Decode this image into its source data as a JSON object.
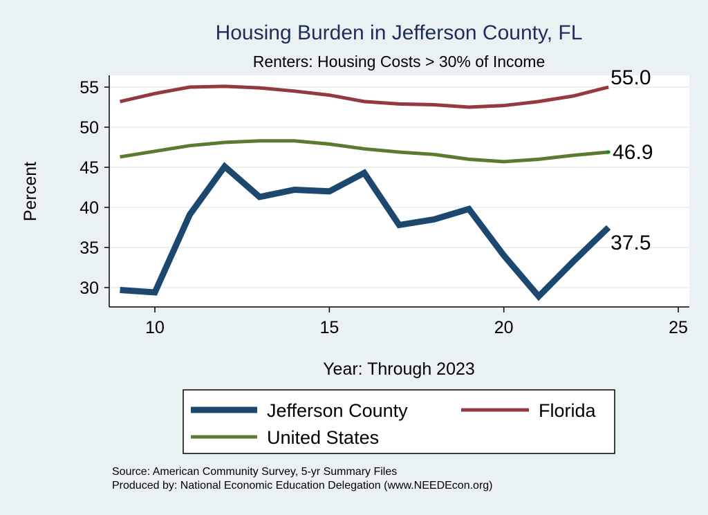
{
  "chart_data": {
    "type": "line",
    "title": "Housing Burden in Jefferson County, FL",
    "subtitle": "Renters: Housing Costs > 30% of Income",
    "xlabel": "Year: Through 2023",
    "ylabel": "Percent",
    "xlim": [
      9,
      25
    ],
    "ylim": [
      28.5,
      56
    ],
    "xticks": [
      10,
      15,
      20,
      25
    ],
    "yticks": [
      30,
      35,
      40,
      45,
      50,
      55
    ],
    "grid": "horizontal",
    "legend_position": "bottom",
    "x": [
      9,
      10,
      11,
      12,
      13,
      14,
      15,
      16,
      17,
      18,
      19,
      20,
      21,
      22,
      23
    ],
    "series": [
      {
        "name": "Jefferson County",
        "color": "#1c4870",
        "values": [
          29.7,
          29.4,
          39.1,
          45.1,
          41.3,
          42.2,
          42.0,
          44.3,
          37.8,
          38.5,
          39.8,
          34.0,
          28.9,
          33.3,
          37.5
        ],
        "end_label": "37.5"
      },
      {
        "name": "Florida",
        "color": "#933a40",
        "values": [
          53.2,
          54.2,
          55.0,
          55.1,
          54.9,
          54.5,
          54.0,
          53.2,
          52.9,
          52.8,
          52.5,
          52.7,
          53.2,
          53.9,
          55.0
        ],
        "end_label": "55.0"
      },
      {
        "name": "United States",
        "color": "#5a7a32",
        "values": [
          46.3,
          47.0,
          47.7,
          48.1,
          48.3,
          48.3,
          47.9,
          47.3,
          46.9,
          46.6,
          46.0,
          45.7,
          46.0,
          46.5,
          46.9
        ],
        "end_label": "46.9"
      }
    ],
    "notes": [
      "Source: American Community Survey, 5-yr Summary Files",
      "Produced by: National Economic Education Delegation (www.NEEDEcon.org)"
    ]
  }
}
